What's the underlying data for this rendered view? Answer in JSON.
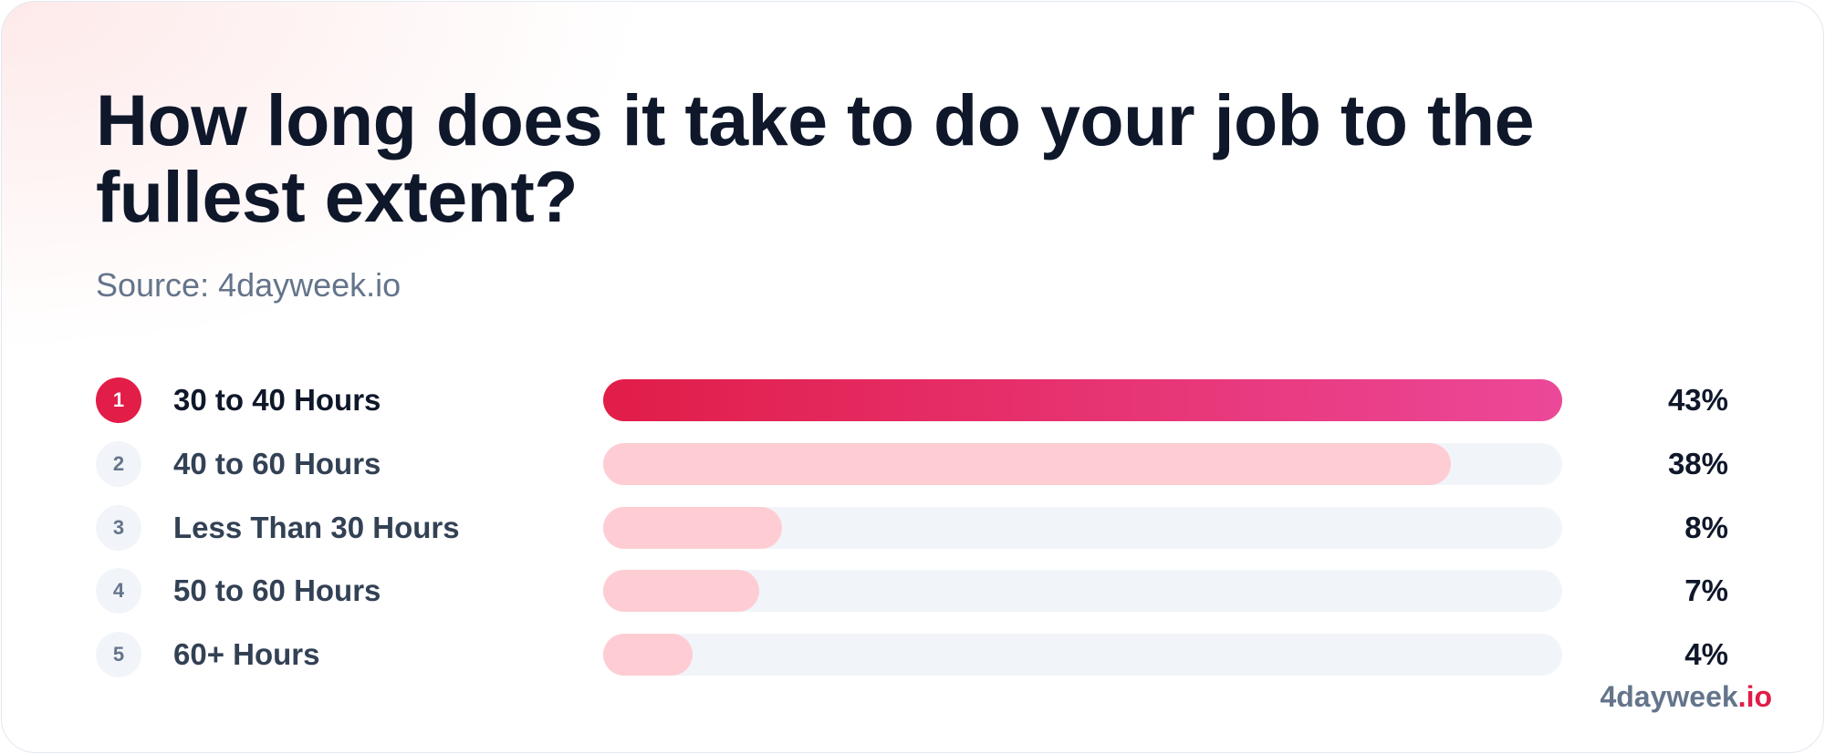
{
  "chart_data": {
    "type": "bar",
    "orientation": "horizontal",
    "title": "How long does it take to do your job to the fullest extent?",
    "subtitle": "Source: 4dayweek.io",
    "ranks": [
      1,
      2,
      3,
      4,
      5
    ],
    "categories": [
      "30 to 40 Hours",
      "40 to 60 Hours",
      "Less Than 30 Hours",
      "50 to 60 Hours",
      "60+ Hours"
    ],
    "values": [
      43,
      38,
      8,
      7,
      4
    ],
    "value_labels": [
      "43%",
      "38%",
      "8%",
      "7%",
      "4%"
    ],
    "xlim": [
      0,
      43
    ],
    "colors": {
      "highlight": [
        "#e11d48",
        "#ec4899"
      ],
      "bar": "#fecdd3",
      "track": "#f1f5f9"
    },
    "brand": {
      "name": "4dayweek",
      "suffix": ".io"
    }
  }
}
